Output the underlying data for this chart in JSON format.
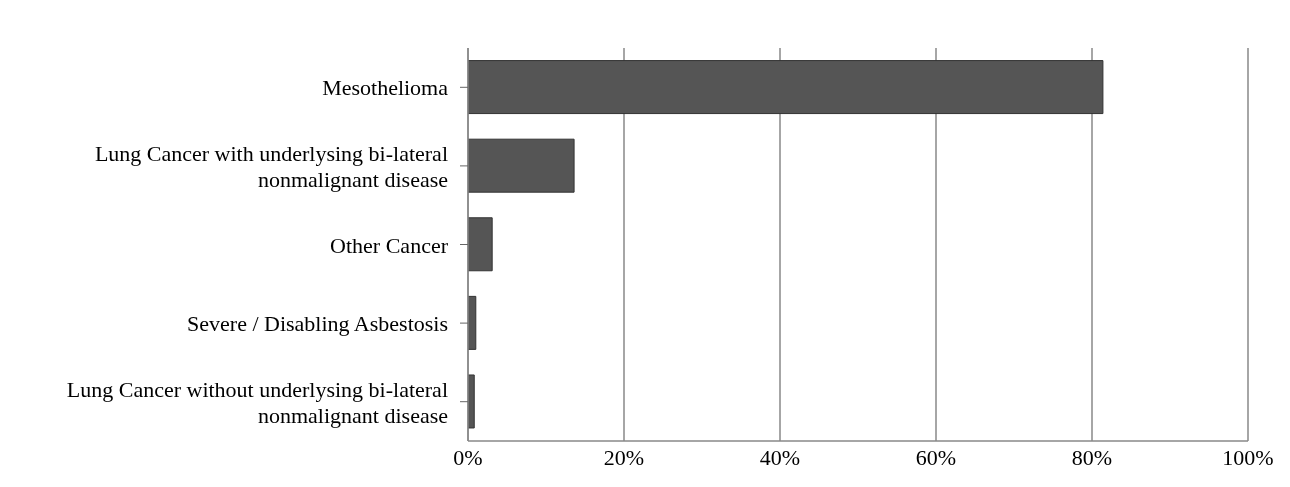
{
  "chart_data": {
    "type": "bar",
    "orientation": "horizontal",
    "categories": [
      "Mesothelioma",
      "Lung Cancer with underlysing bi-lateral nonmalignant disease",
      "Other Cancer",
      "Severe / Disabling Asbestosis",
      "Lung Cancer without underlysing bi-lateral nonmalignant disease"
    ],
    "values": [
      81.4,
      13.6,
      3.1,
      1.0,
      0.8
    ],
    "color": "#555555",
    "xlim": [
      0,
      100
    ],
    "xticks": [
      {
        "value": 0,
        "label": "0%"
      },
      {
        "value": 20,
        "label": "20%"
      },
      {
        "value": 40,
        "label": "40%"
      },
      {
        "value": 60,
        "label": "60%"
      },
      {
        "value": 80,
        "label": "80%"
      },
      {
        "value": 100,
        "label": "100%"
      }
    ],
    "grid": "x"
  }
}
